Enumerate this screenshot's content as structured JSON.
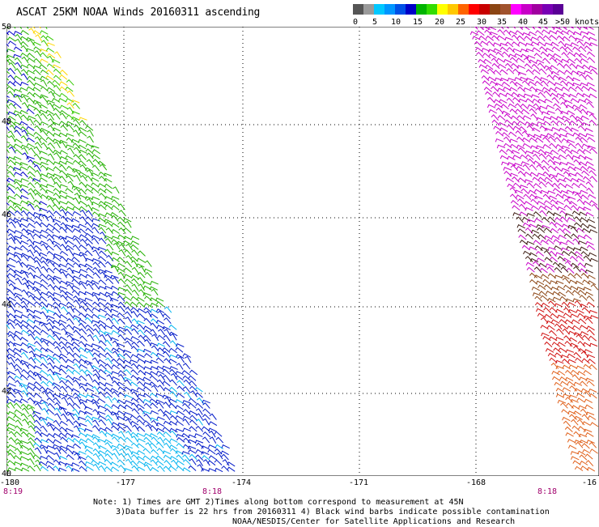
{
  "title": "ASCAT 25KM NOAA Winds 20160311 ascending",
  "legend": {
    "colors": [
      "#555555",
      "#9a9a9a",
      "#00c8ff",
      "#0096ff",
      "#0050e6",
      "#0000c8",
      "#00b400",
      "#32dc00",
      "#ffff00",
      "#ffc800",
      "#ff6400",
      "#ff0000",
      "#c80000",
      "#8b4513",
      "#a0522d",
      "#ff00ff",
      "#c800c8",
      "#a000a0",
      "#7800b4",
      "#5a0096"
    ],
    "labels": [
      "0",
      "5",
      "10",
      "15",
      "20",
      "25",
      "30",
      "35",
      "40",
      "45",
      ">50 knots"
    ]
  },
  "map": {
    "lat_ticks": [
      "50",
      "48",
      "46",
      "44",
      "42",
      "40"
    ],
    "lon_ticks": [
      "-180",
      "-177",
      "-174",
      "-171",
      "-168",
      "-16"
    ],
    "times": [
      "8:19",
      "8:18",
      "8:18"
    ]
  },
  "notes": [
    "Note: 1) Times are GMT 2)Times along bottom correspond to measurement at 45N",
    "3)Data buffer is 22 hrs from 20160311 4) Black wind barbs indicate possible contamination",
    "NOAA/NESDIS/Center for Satellite Applications and Research"
  ]
}
